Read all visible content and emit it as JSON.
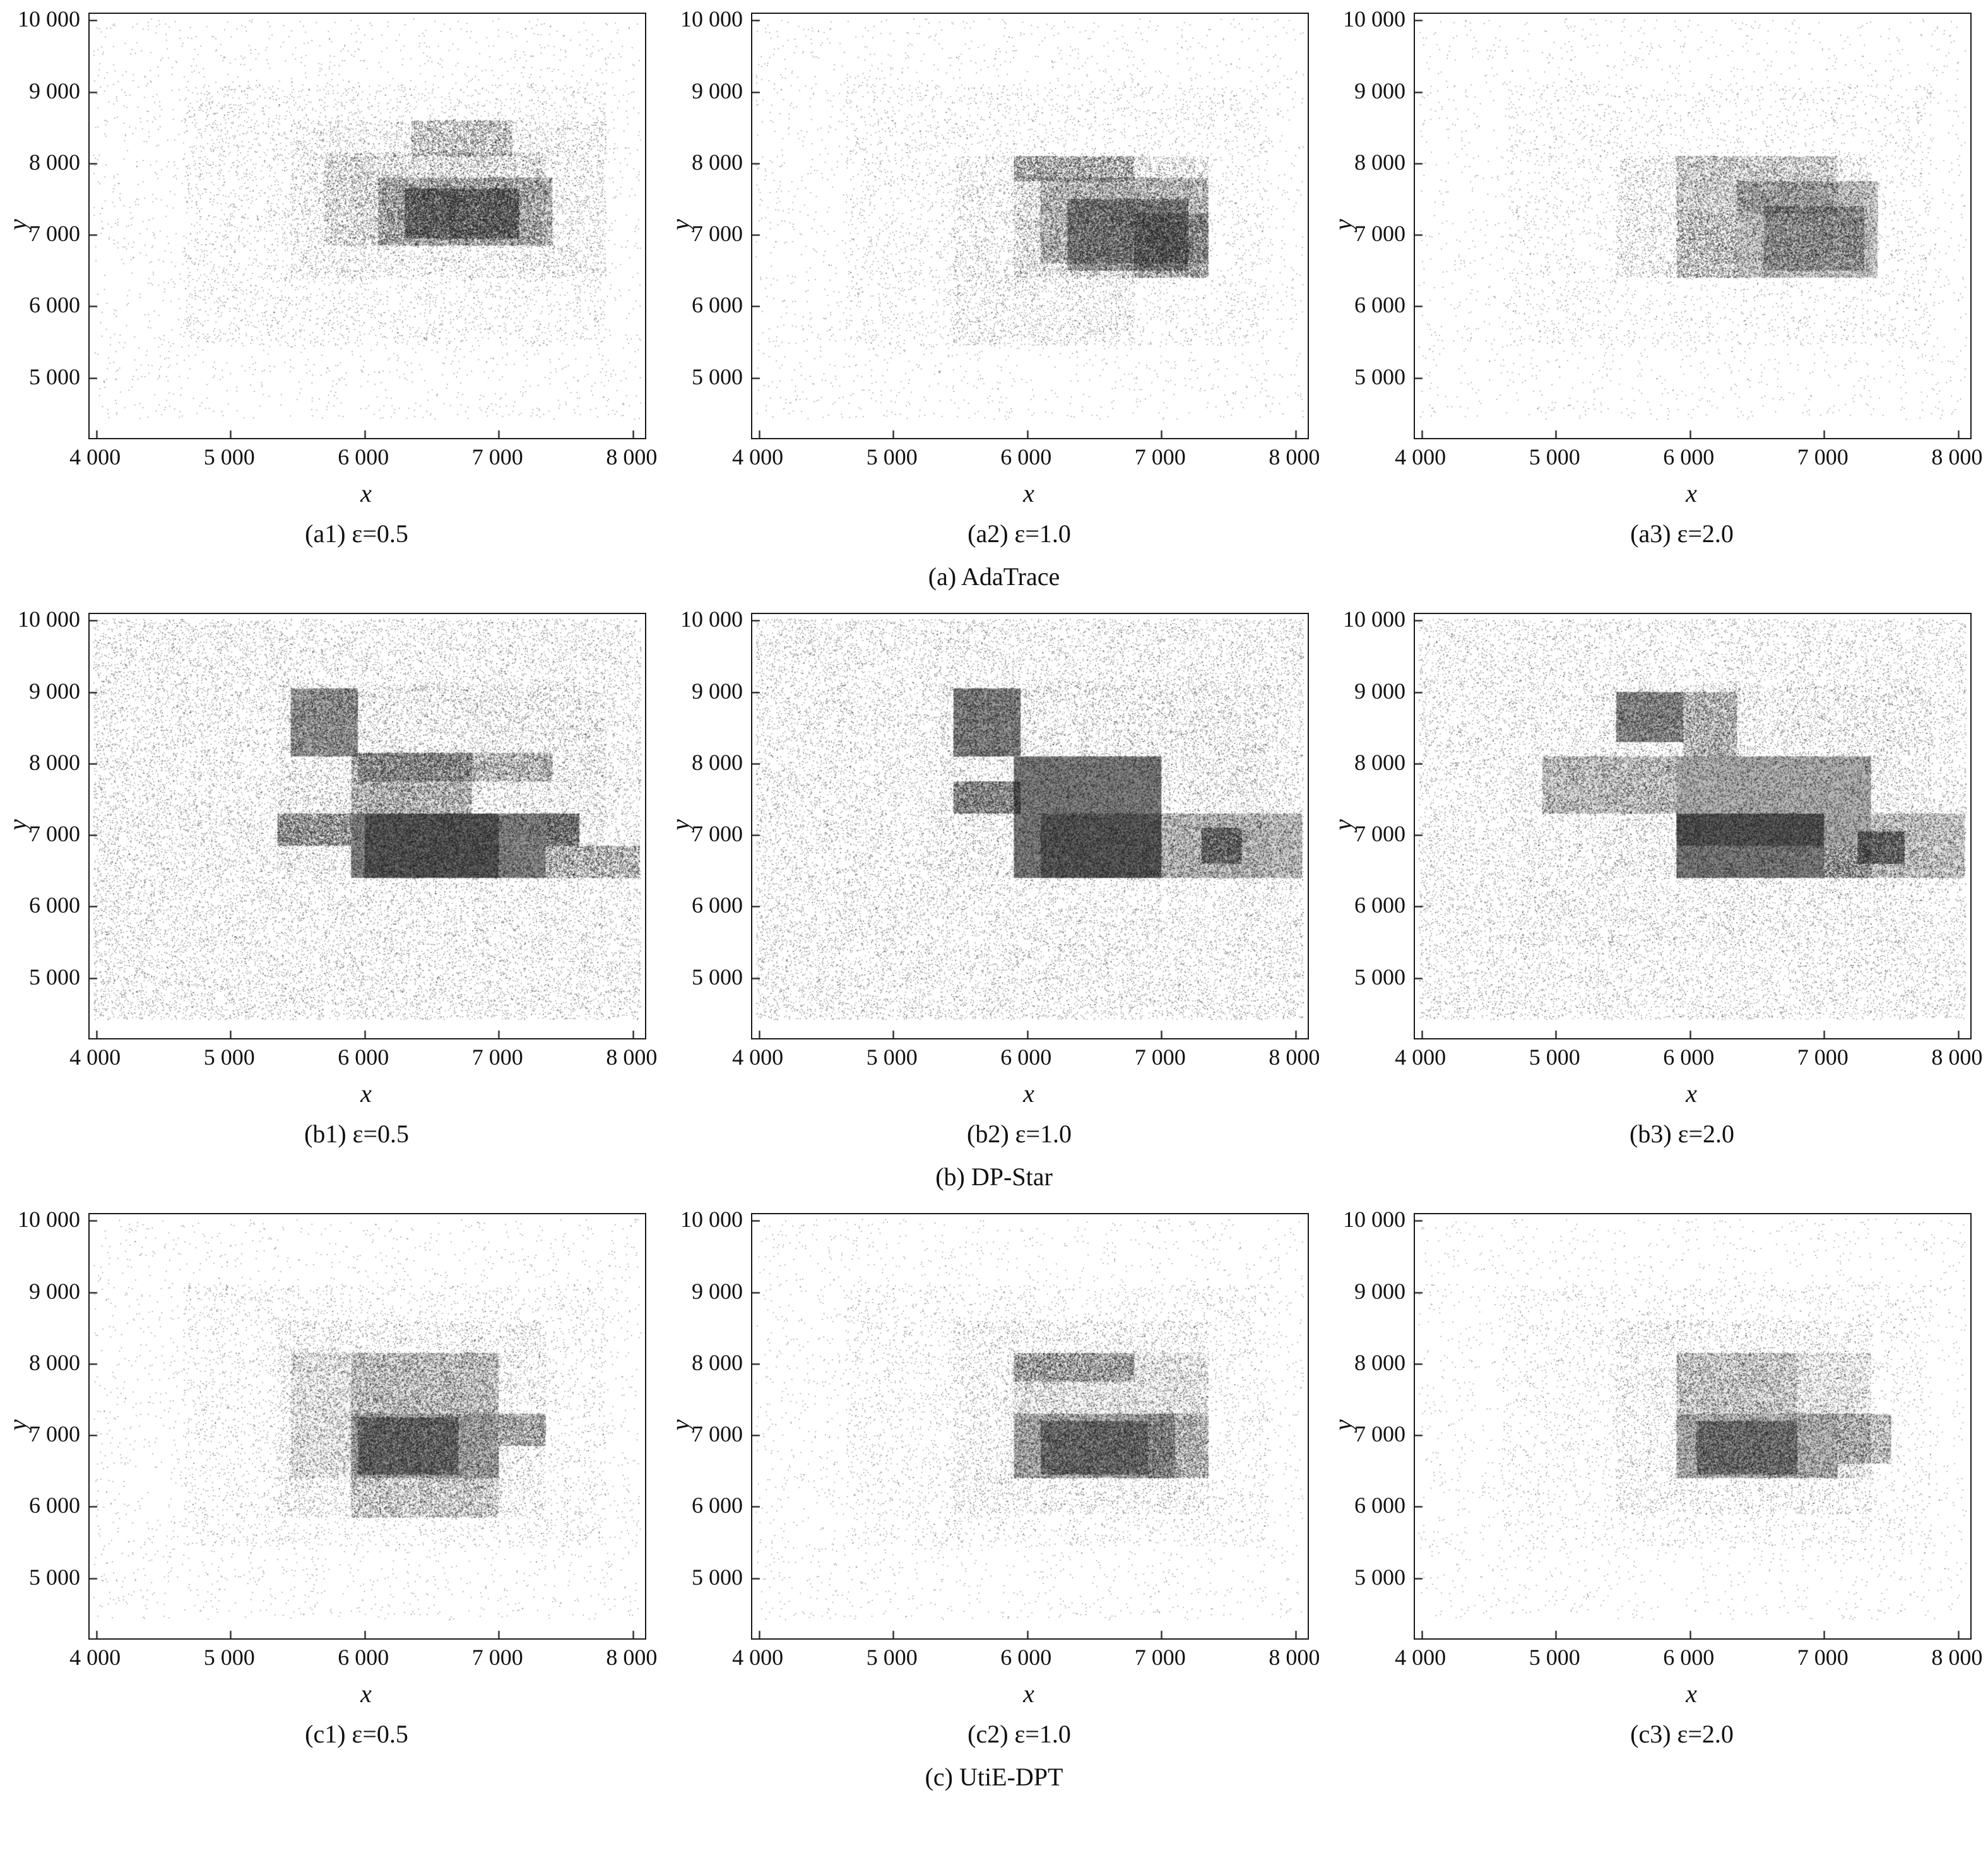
{
  "figure": {
    "description": "3x3 grid of density scatter plots comparing synthetic trajectory data of three mechanisms at three privacy budgets"
  },
  "chart_data": {
    "type": "scatter",
    "note": "Density-block approximation of point clouds; each block = [x0, y0, x1, y1, n_points, fill_alpha]",
    "xlabel": "x",
    "ylabel": "y",
    "xlim": [
      3950,
      8090
    ],
    "ylim": [
      4160,
      10090
    ],
    "x_tick_values": [
      4000,
      5000,
      6000,
      7000,
      8000
    ],
    "x_tick_labels": [
      "4 000",
      "5 000",
      "6 000",
      "7 000",
      "8 000"
    ],
    "y_tick_values": [
      5000,
      6000,
      7000,
      8000,
      9000,
      10000
    ],
    "y_tick_labels": [
      "5 000",
      "6 000",
      "7 000",
      "8 000",
      "9 000",
      "10 000"
    ],
    "groups": [
      {
        "caption": "(a) AdaTrace",
        "panels": [
          {
            "caption": "(a1) ε=0.5",
            "seed": 11,
            "blocks": [
              [
                3980,
                4420,
                8060,
                10020,
                2600,
                0
              ],
              [
                4650,
                5450,
                7800,
                9100,
                4200,
                0
              ],
              [
                5450,
                6400,
                7800,
                8600,
                4500,
                0
              ],
              [
                5700,
                6850,
                7350,
                8150,
                5500,
                0
              ],
              [
                6100,
                6850,
                7400,
                7800,
                7000,
                0.1
              ],
              [
                6300,
                6950,
                7150,
                7650,
                6000,
                0.18
              ],
              [
                6350,
                8100,
                7100,
                8600,
                2000,
                0
              ]
            ]
          },
          {
            "caption": "(a2) ε=1.0",
            "seed": 12,
            "blocks": [
              [
                3980,
                4420,
                8060,
                10020,
                2600,
                0
              ],
              [
                4650,
                5450,
                7800,
                9100,
                3200,
                0
              ],
              [
                5450,
                5450,
                6800,
                8100,
                3000,
                0
              ],
              [
                5900,
                6400,
                7350,
                8100,
                5500,
                0
              ],
              [
                6100,
                6600,
                7350,
                7800,
                6500,
                0.1
              ],
              [
                6300,
                6500,
                7200,
                7500,
                6000,
                0.22
              ],
              [
                6800,
                6400,
                7350,
                7300,
                3000,
                0.08
              ],
              [
                5900,
                7750,
                6800,
                8100,
                2200,
                0
              ]
            ]
          },
          {
            "caption": "(a3) ε=2.0",
            "seed": 13,
            "blocks": [
              [
                3980,
                4420,
                8060,
                10020,
                2200,
                0
              ],
              [
                4650,
                5450,
                7800,
                9100,
                2800,
                0
              ],
              [
                5450,
                6400,
                7350,
                8100,
                3800,
                0
              ],
              [
                5900,
                7300,
                7100,
                8100,
                3500,
                0.05
              ],
              [
                6350,
                6400,
                7400,
                7750,
                5000,
                0.15
              ],
              [
                6550,
                6500,
                7300,
                7400,
                3500,
                0.12
              ],
              [
                5900,
                6400,
                6350,
                7300,
                2500,
                0
              ]
            ]
          }
        ]
      },
      {
        "caption": "(b) DP-Star",
        "panels": [
          {
            "caption": "(b1) ε=0.5",
            "seed": 21,
            "blocks": [
              [
                3980,
                4420,
                8060,
                10020,
                26000,
                0
              ],
              [
                5350,
                6400,
                7800,
                9100,
                5000,
                0
              ],
              [
                5450,
                8100,
                5950,
                9050,
                3000,
                0.3
              ],
              [
                5900,
                7300,
                6800,
                8150,
                4000,
                0.12
              ],
              [
                5950,
                7750,
                7400,
                8150,
                3000,
                0.08
              ],
              [
                5900,
                6400,
                7350,
                7300,
                6000,
                0.45
              ],
              [
                6000,
                6400,
                7000,
                7300,
                4000,
                0.3
              ],
              [
                7350,
                6850,
                7600,
                7300,
                1500,
                0.25
              ],
              [
                7350,
                6400,
                8050,
                6850,
                2000,
                0.05
              ],
              [
                5350,
                6850,
                5900,
                7300,
                2500,
                0.1
              ]
            ]
          },
          {
            "caption": "(b2) ε=1.0",
            "seed": 22,
            "blocks": [
              [
                3980,
                4420,
                8060,
                10020,
                26000,
                0
              ],
              [
                5350,
                6400,
                7800,
                9100,
                4000,
                0
              ],
              [
                5450,
                8100,
                5950,
                9050,
                3500,
                0.4
              ],
              [
                5450,
                7300,
                5950,
                7750,
                2000,
                0.25
              ],
              [
                5900,
                6400,
                7000,
                8100,
                8000,
                0.5
              ],
              [
                6100,
                6400,
                7000,
                7300,
                3000,
                0.25
              ],
              [
                7000,
                6400,
                8050,
                7300,
                4000,
                0.18
              ],
              [
                7300,
                6600,
                7600,
                7100,
                1200,
                0.25
              ]
            ]
          },
          {
            "caption": "(b3) ε=2.0",
            "seed": 23,
            "blocks": [
              [
                3980,
                4420,
                8060,
                10020,
                22000,
                0
              ],
              [
                4650,
                5450,
                7800,
                9100,
                3000,
                0
              ],
              [
                5350,
                6400,
                7800,
                9100,
                3000,
                0
              ],
              [
                5450,
                8300,
                5950,
                9000,
                2500,
                0.35
              ],
              [
                5950,
                8100,
                6350,
                9000,
                2000,
                0.1
              ],
              [
                4900,
                7300,
                5900,
                8100,
                3500,
                0.12
              ],
              [
                5900,
                6850,
                7350,
                8100,
                5000,
                0.3
              ],
              [
                5900,
                6400,
                7000,
                7300,
                5000,
                0.5
              ],
              [
                7250,
                6600,
                7600,
                7050,
                1500,
                0.3
              ],
              [
                7350,
                6400,
                8050,
                7300,
                2500,
                0.12
              ],
              [
                7000,
                6400,
                7350,
                6850,
                1500,
                0.15
              ]
            ]
          }
        ]
      },
      {
        "caption": "(c) UtiE-DPT",
        "panels": [
          {
            "caption": "(c1) ε=0.5",
            "seed": 31,
            "blocks": [
              [
                3980,
                4420,
                8060,
                10020,
                2800,
                0
              ],
              [
                4650,
                5450,
                7800,
                9100,
                4000,
                0
              ],
              [
                5350,
                5850,
                7350,
                8600,
                4500,
                0
              ],
              [
                5450,
                6400,
                7000,
                8150,
                5000,
                0.04
              ],
              [
                5900,
                5850,
                7000,
                6400,
                2500,
                0.05
              ],
              [
                5900,
                6400,
                7000,
                7300,
                4500,
                0.22
              ],
              [
                5950,
                6450,
                6700,
                7250,
                3000,
                0.28
              ],
              [
                7000,
                6850,
                7350,
                7300,
                1200,
                0.1
              ],
              [
                5900,
                7300,
                7000,
                8150,
                3000,
                0.06
              ]
            ]
          },
          {
            "caption": "(c2) ε=1.0",
            "seed": 32,
            "blocks": [
              [
                3980,
                4420,
                8060,
                10020,
                2800,
                0
              ],
              [
                4650,
                5450,
                7800,
                9100,
                3600,
                0
              ],
              [
                5450,
                5900,
                7350,
                8600,
                4000,
                0
              ],
              [
                5900,
                6400,
                7350,
                8150,
                4200,
                0.03
              ],
              [
                5900,
                7750,
                6800,
                8150,
                2500,
                0.08
              ],
              [
                5900,
                6400,
                7100,
                7300,
                4200,
                0.2
              ],
              [
                6100,
                6450,
                6900,
                7200,
                3000,
                0.3
              ],
              [
                6900,
                6400,
                7350,
                7300,
                1800,
                0.08
              ]
            ]
          },
          {
            "caption": "(c3) ε=2.0",
            "seed": 33,
            "blocks": [
              [
                3980,
                4420,
                8060,
                10020,
                2400,
                0
              ],
              [
                4600,
                5400,
                7800,
                9100,
                3200,
                0
              ],
              [
                5450,
                5900,
                7350,
                8600,
                3600,
                0
              ],
              [
                5900,
                6400,
                7350,
                8150,
                3800,
                0.03
              ],
              [
                5900,
                7300,
                6800,
                8150,
                2200,
                0.05
              ],
              [
                5900,
                6400,
                7100,
                7300,
                3800,
                0.2
              ],
              [
                6050,
                6450,
                6800,
                7200,
                2600,
                0.28
              ],
              [
                7100,
                6600,
                7500,
                7300,
                1400,
                0.1
              ]
            ]
          }
        ]
      }
    ]
  }
}
